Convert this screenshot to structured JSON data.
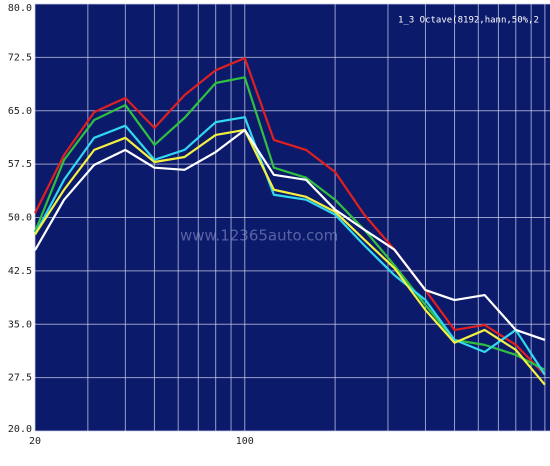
{
  "chart_data": {
    "type": "line",
    "annotation": "1_3 Octave(8192,hann,50%,2",
    "watermark": "www.12365auto.com",
    "x": [
      20,
      25,
      31.5,
      40,
      50,
      63,
      80,
      100,
      125,
      160,
      200,
      250,
      315,
      400,
      500,
      630,
      800,
      1000
    ],
    "series": [
      {
        "color": "#e02020",
        "values": [
          50.6,
          58.8,
          64.8,
          66.8,
          62.6,
          67.2,
          70.7,
          72.4,
          60.9,
          59.5,
          56.4,
          50.4,
          45.5,
          39.8,
          34.2,
          34.9,
          32.1,
          27.9
        ]
      },
      {
        "color": "#30c040",
        "values": [
          48,
          58.1,
          63.7,
          65.8,
          60.2,
          64,
          68.9,
          69.7,
          57,
          55.6,
          52.5,
          48.3,
          43.3,
          37.7,
          32.8,
          32.1,
          30.7,
          28.6
        ]
      },
      {
        "color": "#30d8f0",
        "values": [
          47.6,
          55.3,
          61.2,
          62.9,
          58.1,
          59.5,
          63.4,
          64.1,
          53.2,
          52.5,
          50.4,
          46.1,
          41.9,
          38.4,
          32.8,
          31.1,
          34.2,
          27.9
        ]
      },
      {
        "color": "#f4f040",
        "values": [
          47.6,
          53.9,
          59.5,
          61.2,
          57.8,
          58.5,
          61.6,
          62.3,
          53.9,
          52.9,
          50.8,
          46.9,
          42.9,
          37,
          32.4,
          34.2,
          31.4,
          26.5
        ]
      },
      {
        "color": "#ffffff",
        "values": [
          45.4,
          52.5,
          57.4,
          59.5,
          57,
          56.7,
          59.2,
          62.3,
          56,
          55.3,
          51.1,
          48.3,
          45.5,
          39.8,
          38.4,
          39.1,
          34.2,
          32.8
        ]
      }
    ],
    "log_x": true,
    "xlim": [
      20,
      1040
    ],
    "xticks": [
      20,
      100
    ],
    "xgrid": [
      20,
      30,
      40,
      50,
      60,
      70,
      80,
      90,
      100,
      200,
      300,
      400,
      500,
      600,
      700,
      800,
      900,
      1000
    ],
    "ylim": [
      20,
      80
    ],
    "yticks": [
      {
        "value": 20,
        "label": "20.0"
      },
      {
        "value": 27.5,
        "label": "27.5"
      },
      {
        "value": 35,
        "label": "35.0"
      },
      {
        "value": 42.5,
        "label": "42.5"
      },
      {
        "value": 50,
        "label": "50.0"
      },
      {
        "value": 57.5,
        "label": "57.5"
      },
      {
        "value": 65,
        "label": "65.0"
      },
      {
        "value": 72.5,
        "label": "72.5"
      },
      {
        "value": 80,
        "label": "80.0"
      }
    ],
    "grid": true,
    "background": "#0b1a6b"
  }
}
